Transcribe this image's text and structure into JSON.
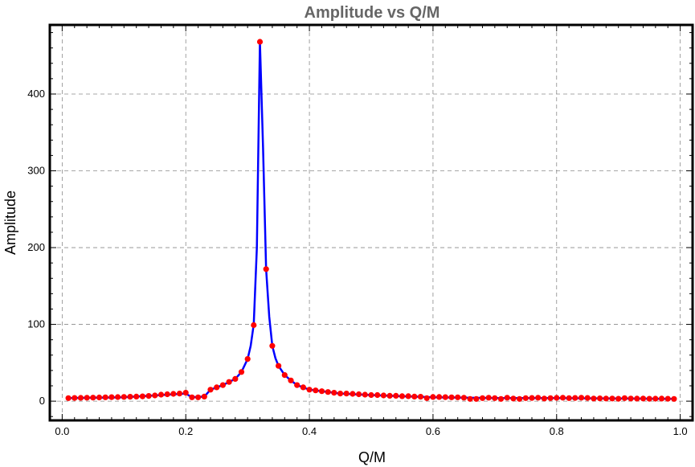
{
  "chart_data": {
    "type": "line",
    "title": "Amplitude vs Q/M",
    "xlabel": "Q/M",
    "ylabel": "Amplitude",
    "xlim": [
      -0.02,
      1.02
    ],
    "ylim": [
      -25,
      490
    ],
    "grid": true,
    "x_ticks": [
      0.0,
      0.2,
      0.4,
      0.6,
      0.8,
      1.0
    ],
    "x_tick_labels": [
      "0.0",
      "0.2",
      "0.4",
      "0.6",
      "0.8",
      "1.0"
    ],
    "y_ticks": [
      0,
      100,
      200,
      300,
      400
    ],
    "y_tick_labels": [
      "0",
      "100",
      "200",
      "300",
      "400"
    ],
    "colors": {
      "curve": "#0000ff",
      "points": "#ff0000",
      "title": "#666666"
    },
    "curve": {
      "x": [
        0.01,
        0.1,
        0.2,
        0.21,
        0.23,
        0.24,
        0.26,
        0.28,
        0.29,
        0.3,
        0.305,
        0.31,
        0.315,
        0.32,
        0.325,
        0.33,
        0.335,
        0.34,
        0.345,
        0.35,
        0.36,
        0.37,
        0.38,
        0.4,
        0.45,
        0.5,
        0.6,
        0.7,
        0.8,
        0.9,
        0.99
      ],
      "y": [
        4,
        5,
        10,
        5,
        6,
        15,
        21,
        29,
        38,
        55,
        72,
        100,
        200,
        468,
        330,
        172,
        110,
        72,
        56,
        46,
        34,
        27,
        21,
        15,
        10,
        8,
        5,
        4,
        4,
        3.5,
        3
      ]
    },
    "points": {
      "x": [
        0.01,
        0.02,
        0.03,
        0.04,
        0.05,
        0.06,
        0.07,
        0.08,
        0.09,
        0.1,
        0.11,
        0.12,
        0.13,
        0.14,
        0.15,
        0.16,
        0.17,
        0.18,
        0.19,
        0.2,
        0.21,
        0.22,
        0.23,
        0.24,
        0.25,
        0.26,
        0.27,
        0.28,
        0.29,
        0.3,
        0.31,
        0.32,
        0.33,
        0.34,
        0.35,
        0.36,
        0.37,
        0.38,
        0.39,
        0.4,
        0.41,
        0.42,
        0.43,
        0.44,
        0.45,
        0.46,
        0.47,
        0.48,
        0.49,
        0.5,
        0.51,
        0.52,
        0.53,
        0.54,
        0.55,
        0.56,
        0.57,
        0.58,
        0.59,
        0.6,
        0.61,
        0.62,
        0.63,
        0.64,
        0.65,
        0.66,
        0.67,
        0.68,
        0.69,
        0.7,
        0.71,
        0.72,
        0.73,
        0.74,
        0.75,
        0.76,
        0.77,
        0.78,
        0.79,
        0.8,
        0.81,
        0.82,
        0.83,
        0.84,
        0.85,
        0.86,
        0.87,
        0.88,
        0.89,
        0.9,
        0.91,
        0.92,
        0.93,
        0.94,
        0.95,
        0.96,
        0.97,
        0.98,
        0.99
      ],
      "y": [
        4,
        4.2,
        4.3,
        4.5,
        4.6,
        4.8,
        5,
        5.2,
        5.4,
        5.6,
        5.8,
        6,
        6.3,
        6.8,
        7.5,
        8.5,
        9,
        9.5,
        10,
        11,
        5,
        5,
        6,
        15,
        18,
        21,
        25,
        29,
        38,
        55,
        99,
        468,
        172,
        72,
        46,
        34,
        27,
        21,
        18,
        15,
        14,
        13,
        12,
        11,
        10,
        10,
        9.5,
        9,
        8.5,
        8,
        8,
        7.5,
        7,
        7,
        6.5,
        6.5,
        6,
        5.8,
        4,
        5.5,
        5.5,
        5.3,
        5,
        5,
        4.5,
        3,
        3,
        4,
        4.5,
        4,
        3,
        4.5,
        3.5,
        3,
        4,
        4.2,
        4.5,
        3.5,
        4,
        4.3,
        4.5,
        4,
        4.2,
        4.5,
        4.2,
        3.5,
        3.7,
        3.5,
        3.5,
        3.2,
        4,
        3.5,
        3.4,
        3.5,
        3.2,
        3.3,
        3.4,
        3.2,
        3
      ]
    }
  }
}
